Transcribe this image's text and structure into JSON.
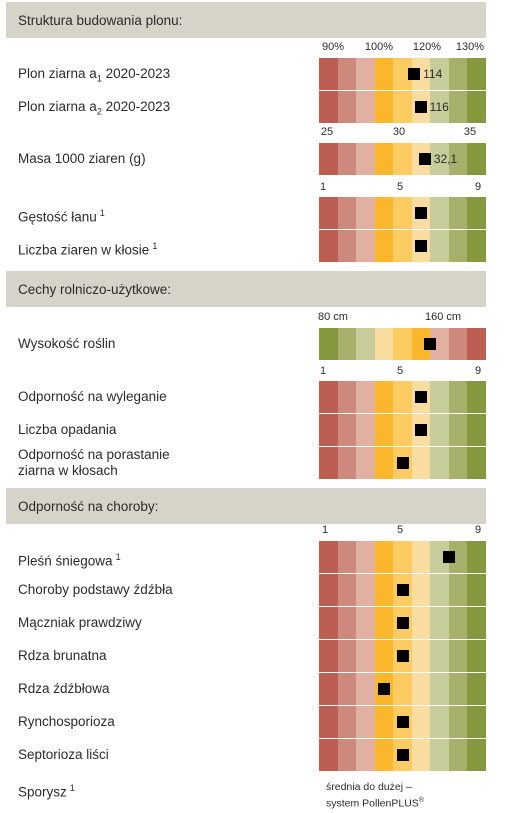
{
  "colors": {
    "section_bg": "#d6d3c9",
    "scale": [
      "#bc5e51",
      "#cd8a7c",
      "#e0b0a2",
      "#fbb72b",
      "#fccb62",
      "#f9dca0",
      "#c7cc9b",
      "#a6b06a",
      "#86983e"
    ]
  },
  "sections": [
    {
      "title": "Struktura budowania plonu:"
    },
    {
      "title": "Cechy rolniczo-użytkowe:"
    },
    {
      "title": "Odporność na choroby:"
    }
  ],
  "chart_data": {
    "type": "table",
    "groups": [
      {
        "section": 0,
        "scale_ticks": [
          "90%",
          "100%",
          "120%",
          "130%"
        ],
        "rows": [
          {
            "label": "Plon ziarna a",
            "sub": "1",
            "suffix": " 2020-2023",
            "value": 114,
            "value_label": "114"
          },
          {
            "label": "Plon ziarna a",
            "sub": "2",
            "suffix": " 2020-2023",
            "value": 116,
            "value_label": "116"
          }
        ]
      },
      {
        "section": 0,
        "scale_ticks": [
          "25",
          "30",
          "35"
        ],
        "rows": [
          {
            "label": "Masa 1000 ziaren (g)",
            "value": 32.1,
            "value_label": "32,1"
          }
        ]
      },
      {
        "section": 0,
        "scale_ticks": [
          "1",
          "5",
          "9"
        ],
        "rows": [
          {
            "label": "Gęstość łanu",
            "footnote": "1",
            "value": 6
          },
          {
            "label": "Liczba ziaren w kłosie",
            "footnote": "1",
            "value": 6
          }
        ]
      },
      {
        "section": 1,
        "scale_ticks": [
          "80 cm",
          "160 cm"
        ],
        "rows": [
          {
            "label": "Wysokość roślin",
            "value": 130
          }
        ]
      },
      {
        "section": 1,
        "scale_ticks": [
          "1",
          "5",
          "9"
        ],
        "rows": [
          {
            "label": "Odporność na wyleganie",
            "value": 6
          },
          {
            "label": "Liczba opadania",
            "value": 6
          },
          {
            "label": "Odporność na porastanie",
            "label2": "ziarna w kłosach",
            "value": 5
          }
        ]
      },
      {
        "section": 2,
        "scale_ticks": [
          "1",
          "5",
          "9"
        ],
        "rows": [
          {
            "label": "Pleśń śniegowa",
            "footnote": "1",
            "value": 7.5
          },
          {
            "label": "Choroby podstawy źdźbła",
            "value": 5
          },
          {
            "label": "Mączniak prawdziwy",
            "value": 5
          },
          {
            "label": "Rdza brunatna",
            "value": 5
          },
          {
            "label": "Rdza źdźbłowa",
            "value": 4
          },
          {
            "label": "Rynchosporioza",
            "value": 5
          },
          {
            "label": "Septorioza liści",
            "value": 5
          },
          {
            "label": "Sporysz",
            "footnote": "1",
            "note_line1": "średnia do dużej –",
            "note_line2": "system PollenPLUS",
            "note_sup": "®"
          }
        ]
      }
    ]
  }
}
